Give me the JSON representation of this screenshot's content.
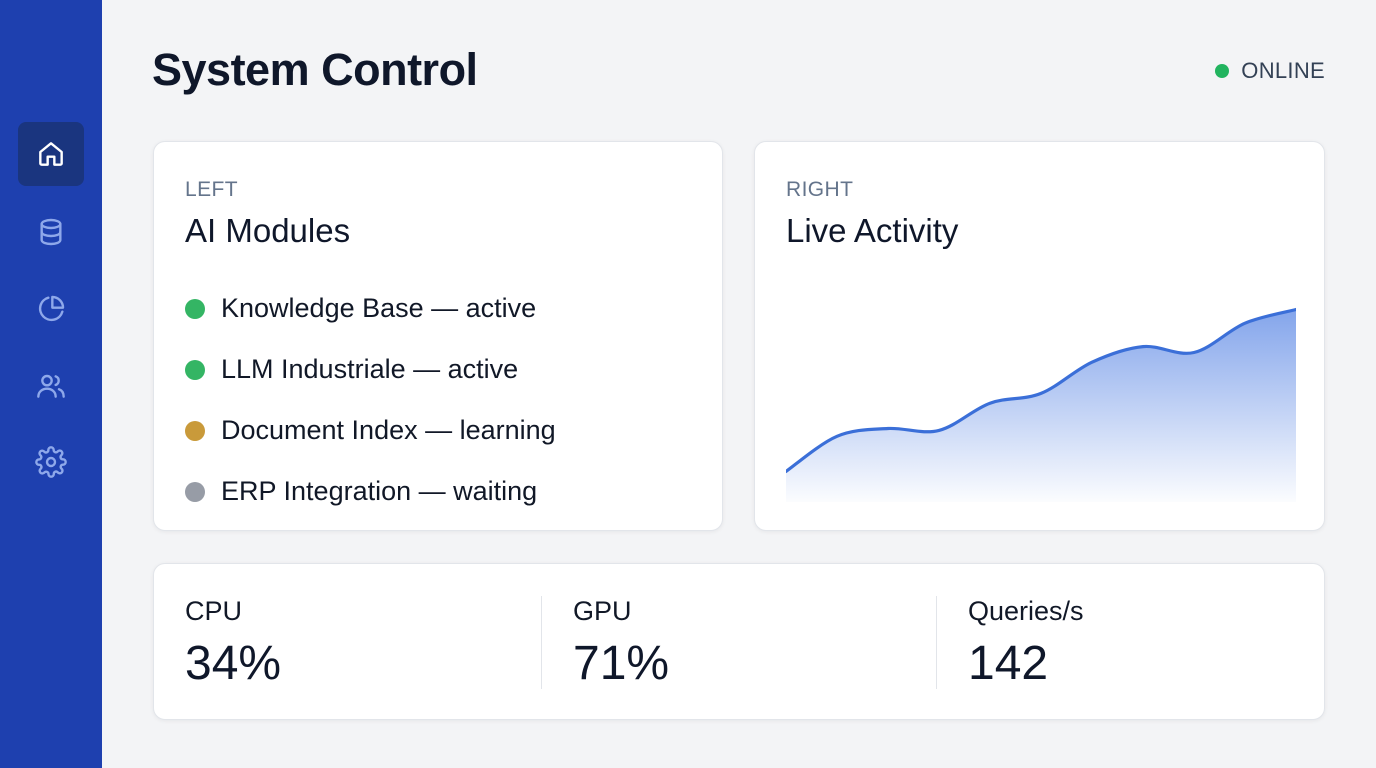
{
  "header": {
    "title": "System Control",
    "status": {
      "label": "ONLINE",
      "color": "#22b45f"
    }
  },
  "sidebar": {
    "items": [
      {
        "icon": "home-icon",
        "active": true
      },
      {
        "icon": "database-icon",
        "active": false
      },
      {
        "icon": "pie-chart-icon",
        "active": false
      },
      {
        "icon": "users-icon",
        "active": false
      },
      {
        "icon": "gear-icon",
        "active": false
      }
    ]
  },
  "modules_card": {
    "eyebrow": "LEFT",
    "title": "AI Modules",
    "items": [
      {
        "label": "Knowledge Base — active",
        "color": "#34b564"
      },
      {
        "label": "LLM Industriale — active",
        "color": "#34b564"
      },
      {
        "label": "Document Index — learning",
        "color": "#c99a3a"
      },
      {
        "label": "ERP Integration — waiting",
        "color": "#979ca6"
      }
    ]
  },
  "activity_card": {
    "eyebrow": "RIGHT",
    "title": "Live Activity",
    "chart_data": {
      "type": "area",
      "title": "Live Activity",
      "xlabel": "",
      "ylabel": "",
      "x": [
        0,
        1,
        2,
        3,
        4,
        5,
        6,
        7,
        8,
        9,
        10
      ],
      "values": [
        8,
        26,
        30,
        29,
        43,
        48,
        64,
        72,
        69,
        84,
        91
      ],
      "ylim": [
        0,
        100
      ],
      "grid": false,
      "line_color": "#3b6fd8",
      "fill_color": "#7da0ea"
    }
  },
  "stats": [
    {
      "label": "CPU",
      "value": "34%"
    },
    {
      "label": "GPU",
      "value": "71%"
    },
    {
      "label": "Queries/s",
      "value": "142"
    }
  ]
}
